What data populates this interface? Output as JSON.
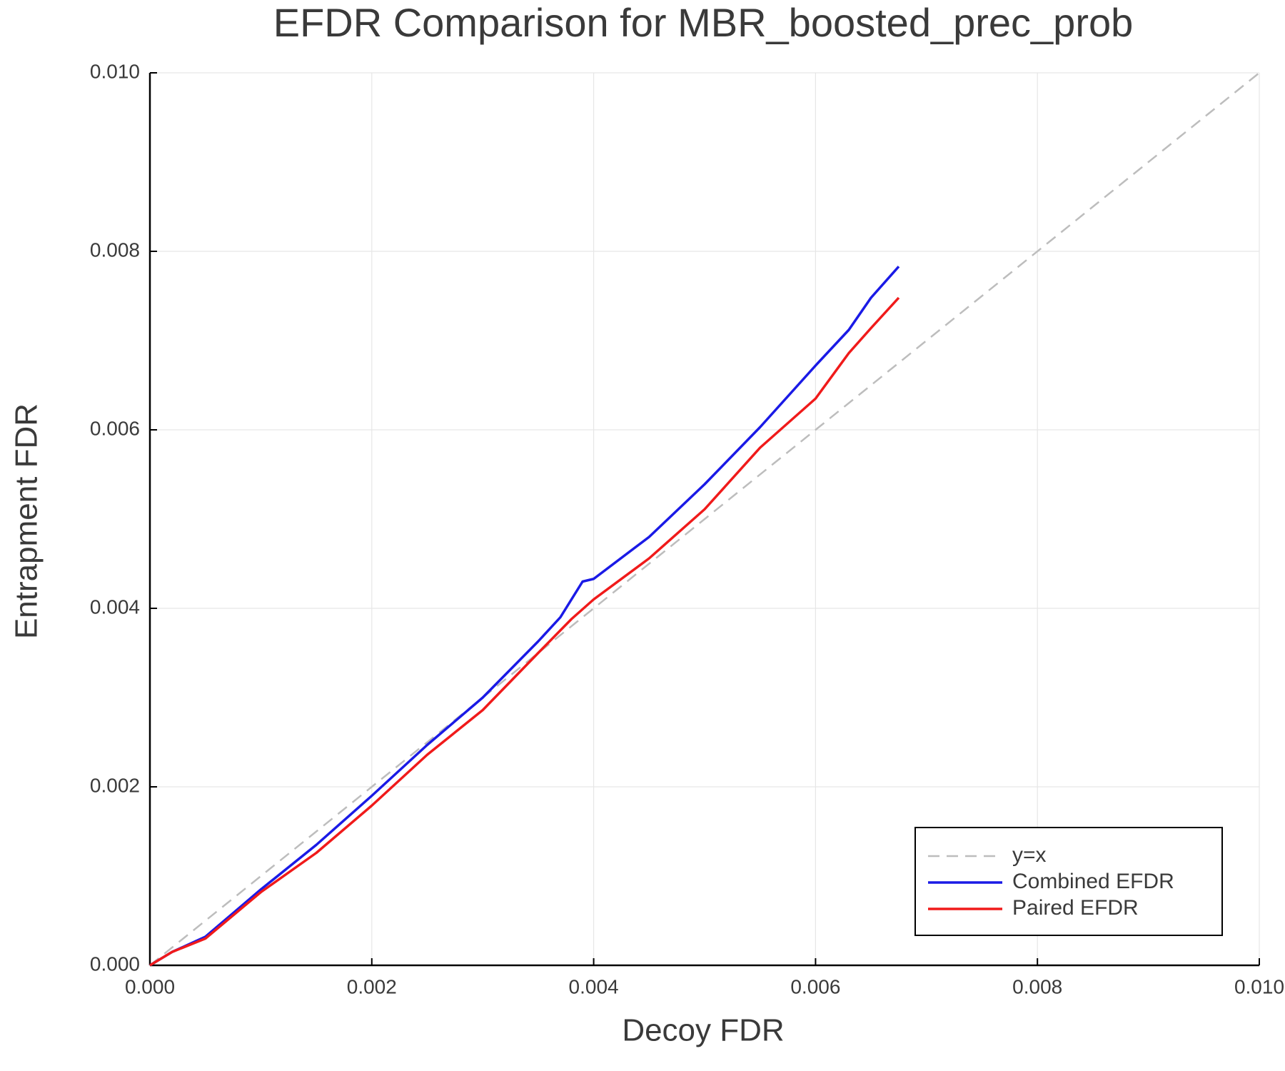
{
  "chart_data": {
    "type": "line",
    "title": "EFDR Comparison for MBR_boosted_prec_prob",
    "x_label": "Decoy FDR",
    "y_label": "Entrapment FDR",
    "xlim": [
      0,
      0.01
    ],
    "ylim": [
      0,
      0.01
    ],
    "xticks": [
      {
        "value": 0,
        "label": "0.000"
      },
      {
        "value": 0.002,
        "label": "0.002"
      },
      {
        "value": 0.004,
        "label": "0.004"
      },
      {
        "value": 0.006,
        "label": "0.006"
      },
      {
        "value": 0.008,
        "label": "0.008"
      },
      {
        "value": 0.01,
        "label": "0.010"
      }
    ],
    "yticks": [
      {
        "value": 0,
        "label": "0.000"
      },
      {
        "value": 0.002,
        "label": "0.002"
      },
      {
        "value": 0.004,
        "label": "0.004"
      },
      {
        "value": 0.006,
        "label": "0.006"
      },
      {
        "value": 0.008,
        "label": "0.008"
      },
      {
        "value": 0.01,
        "label": "0.010"
      }
    ],
    "grid": true,
    "legend": "bottom-right",
    "series": [
      {
        "name": "y=x",
        "color": "#bdbdbd",
        "dashed": true,
        "x": [
          0,
          0.01
        ],
        "values": [
          0,
          0.01
        ]
      },
      {
        "name": "Combined EFDR",
        "color": "#1a1ae6",
        "dashed": false,
        "x": [
          0,
          0.0002,
          0.0005,
          0.001,
          0.0015,
          0.002,
          0.0025,
          0.003,
          0.0035,
          0.0037,
          0.0039,
          0.004,
          0.0045,
          0.005,
          0.0055,
          0.006,
          0.0063,
          0.0065,
          0.00675
        ],
        "values": [
          0,
          0.00015,
          0.00032,
          0.00085,
          0.00135,
          0.0019,
          0.00247,
          0.003,
          0.00363,
          0.0039,
          0.0043,
          0.00433,
          0.0048,
          0.00539,
          0.00603,
          0.00672,
          0.00712,
          0.00748,
          0.00783
        ]
      },
      {
        "name": "Paired EFDR",
        "color": "#f01a1a",
        "dashed": false,
        "x": [
          0,
          0.0002,
          0.0005,
          0.001,
          0.0015,
          0.002,
          0.0025,
          0.003,
          0.0035,
          0.0038,
          0.004,
          0.0045,
          0.005,
          0.0055,
          0.006,
          0.0063,
          0.0065,
          0.00675
        ],
        "values": [
          0,
          0.00015,
          0.0003,
          0.00082,
          0.00126,
          0.00179,
          0.00236,
          0.00286,
          0.0035,
          0.00388,
          0.0041,
          0.00456,
          0.00511,
          0.0058,
          0.00635,
          0.00686,
          0.00714,
          0.00748
        ]
      }
    ]
  }
}
